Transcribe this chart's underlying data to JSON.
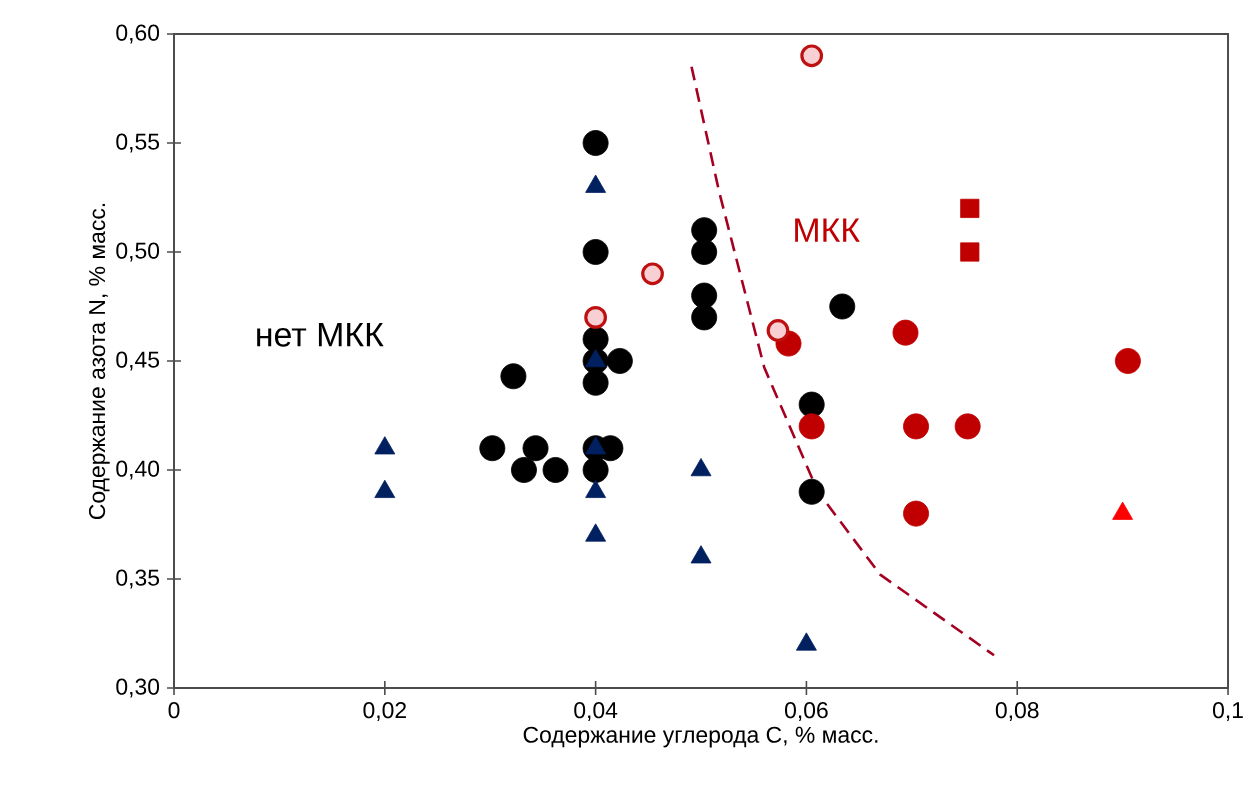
{
  "chart_data": {
    "type": "scatter",
    "xlabel": "Содержание углерода С, % масс.",
    "ylabel": "Содержание азота N, % масс.",
    "xlim": [
      0,
      0.1
    ],
    "ylim": [
      0.3,
      0.6
    ],
    "xticks": [
      0,
      {
        "value": 0.02,
        "label": "0,02"
      },
      {
        "value": 0.04,
        "label": "0,04"
      },
      {
        "value": 0.06,
        "label": "0,06"
      },
      {
        "value": 0.08,
        "label": "0,08"
      },
      {
        "value": 0.1,
        "label": "0,1"
      }
    ],
    "yticks": [
      {
        "value": 0.3,
        "label": "0,30"
      },
      {
        "value": 0.35,
        "label": "0,35"
      },
      {
        "value": 0.4,
        "label": "0,40"
      },
      {
        "value": 0.45,
        "label": "0,45"
      },
      {
        "value": 0.5,
        "label": "0,50"
      },
      {
        "value": 0.55,
        "label": "0,55"
      },
      {
        "value": 0.6,
        "label": "0,60"
      }
    ],
    "annotations": [
      "нет МКК",
      "МКК"
    ],
    "series": [
      {
        "type": "line",
        "line_style": "dashed",
        "marker": "none",
        "color": "#a50021",
        "x": [
          0.0491,
          0.0517,
          0.056,
          0.0611,
          0.067,
          0.0778
        ],
        "values": [
          0.585,
          0.528,
          0.447,
          0.39,
          0.352,
          0.315
        ]
      },
      {
        "marker": "circle",
        "color": "#000000",
        "x": [
          0.04,
          0.04,
          0.04,
          0.04,
          0.04,
          0.0423,
          0.0322,
          0.0503,
          0.0503,
          0.0503,
          0.0503,
          0.0634,
          0.0605,
          0.0605,
          0.0302,
          0.0343,
          0.0332,
          0.0362,
          0.04,
          0.04,
          0.0414
        ],
        "values": [
          0.55,
          0.5,
          0.46,
          0.45,
          0.44,
          0.45,
          0.443,
          0.51,
          0.5,
          0.48,
          0.47,
          0.475,
          0.43,
          0.39,
          0.41,
          0.41,
          0.4,
          0.4,
          0.4,
          0.41,
          0.41
        ]
      },
      {
        "marker": "triangle",
        "color": "#002060",
        "x": [
          0.02,
          0.02,
          0.04,
          0.04,
          0.04,
          0.04,
          0.04,
          0.05,
          0.05,
          0.06
        ],
        "values": [
          0.41,
          0.39,
          0.53,
          0.45,
          0.41,
          0.39,
          0.37,
          0.4,
          0.36,
          0.32
        ]
      },
      {
        "marker": "circle",
        "color": "#c00000",
        "x": [
          0.0583,
          0.0694,
          0.0905,
          0.0605,
          0.0704,
          0.0753,
          0.0704
        ],
        "values": [
          0.458,
          0.463,
          0.45,
          0.42,
          0.42,
          0.42,
          0.38
        ]
      },
      {
        "marker": "circle",
        "color": "#f8d0d4",
        "x": [
          0.0605,
          0.0454,
          0.04,
          0.0573
        ],
        "values": [
          0.59,
          0.49,
          0.47,
          0.464
        ]
      },
      {
        "marker": "square",
        "color": "#c00000",
        "x": [
          0.0755,
          0.0755
        ],
        "values": [
          0.52,
          0.5
        ]
      },
      {
        "marker": "triangle",
        "color": "#ff0000",
        "x": [
          0.09
        ],
        "values": [
          0.38
        ]
      }
    ]
  }
}
